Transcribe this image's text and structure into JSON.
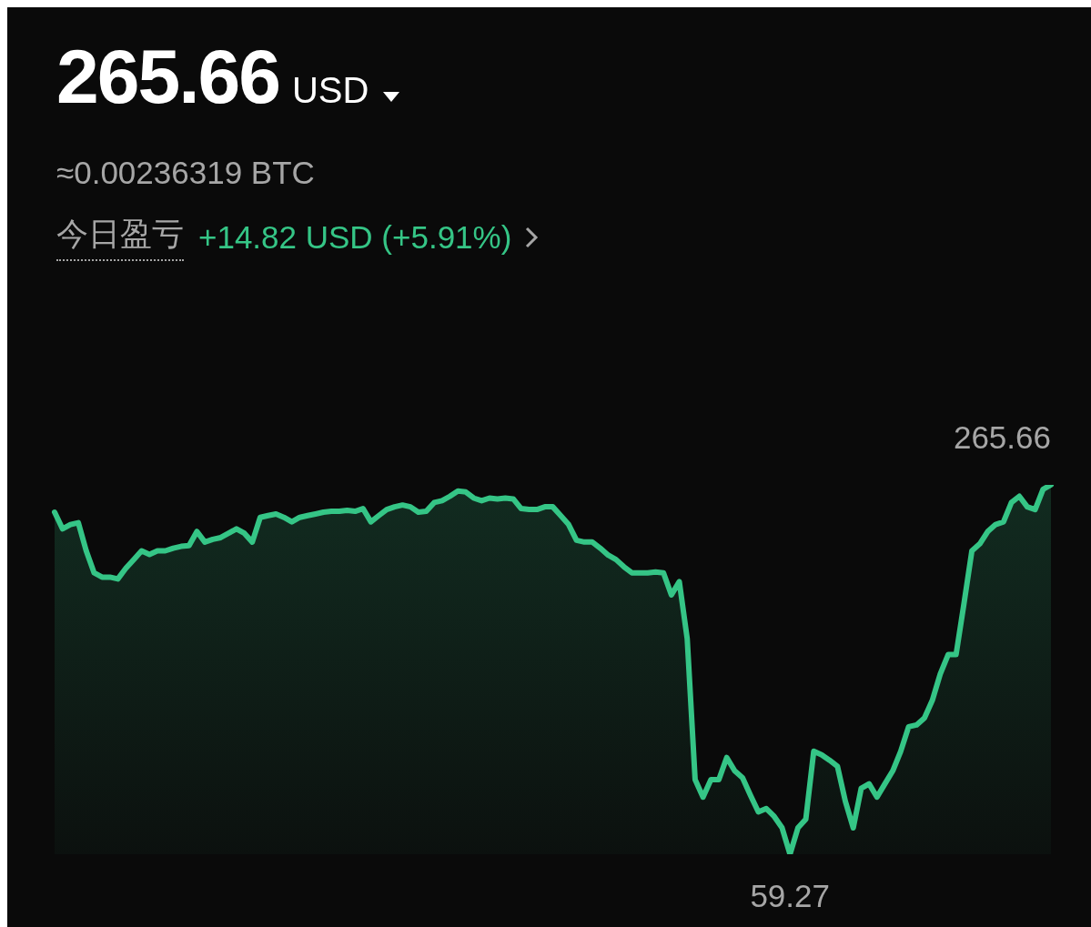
{
  "chart_data": {
    "type": "area",
    "title": "265.66",
    "subtitle": "≈0.00236319 BTC",
    "annotations": [
      "USD",
      "今日盈亏",
      "+14.82 USD (+5.91%)"
    ],
    "categories": [
      null,
      null,
      null,
      null,
      null,
      null,
      null,
      null,
      null,
      null,
      null,
      null,
      null,
      null,
      null,
      null,
      null,
      null,
      null,
      null,
      null,
      null,
      null,
      null,
      null,
      null,
      null,
      null,
      null,
      null,
      null,
      null,
      null,
      null,
      null,
      null,
      null,
      null,
      null,
      null,
      null,
      null,
      null,
      null,
      null,
      null,
      null,
      null,
      null,
      null,
      null,
      null,
      null,
      null,
      null,
      null,
      null,
      null,
      null,
      null,
      null,
      null,
      null,
      null,
      null,
      null,
      null,
      null,
      null,
      null,
      null,
      null,
      null,
      null,
      null,
      null,
      null,
      null,
      null,
      null,
      null,
      null,
      null,
      null,
      null,
      null,
      null,
      null,
      null,
      null,
      null,
      null,
      null,
      null,
      null,
      null,
      null,
      null,
      null,
      null,
      null,
      null,
      null,
      null,
      null,
      null,
      null,
      null,
      null,
      null,
      null,
      null,
      null,
      null,
      null,
      null,
      null,
      null,
      null,
      null,
      null,
      null,
      null,
      null,
      null,
      null,
      null
    ],
    "series": [
      {
        "color": "#35c586",
        "values": [
          250.4,
          241.1,
          243.5,
          244.5,
          228.8,
          216.5,
          214.1,
          214.1,
          213.1,
          219.0,
          223.9,
          228.8,
          226.8,
          228.8,
          228.8,
          230.3,
          231.3,
          231.7,
          239.6,
          233.7,
          235.2,
          236.2,
          238.6,
          241.1,
          238.6,
          233.7,
          247.5,
          248.5,
          249.4,
          247.5,
          245.0,
          247.5,
          248.5,
          249.4,
          250.4,
          250.9,
          250.9,
          251.4,
          250.9,
          252.4,
          245.0,
          248.5,
          251.9,
          253.4,
          254.4,
          253.4,
          250.4,
          250.9,
          255.8,
          256.8,
          259.3,
          262.2,
          261.7,
          258.3,
          256.8,
          258.3,
          257.8,
          258.3,
          257.8,
          252.4,
          251.9,
          251.9,
          253.4,
          253.4,
          248.5,
          243.5,
          234.7,
          233.7,
          233.7,
          230.3,
          226.4,
          223.9,
          219.9,
          216.5,
          216.5,
          216.5,
          217.0,
          216.5,
          204.2,
          211.6,
          179.7,
          101.0,
          91.2,
          101.0,
          101.0,
          113.3,
          105.9,
          102.0,
          92.2,
          82.9,
          84.8,
          80.4,
          74.0,
          59.27,
          74.0,
          78.9,
          116.8,
          114.8,
          111.8,
          108.4,
          88.8,
          74.0,
          96.1,
          98.6,
          91.2,
          98.6,
          105.9,
          116.8,
          130.5,
          131.5,
          135.4,
          145.3,
          160.0,
          170.8,
          170.8,
          199.3,
          228.8,
          232.7,
          239.6,
          243.5,
          245.0,
          255.8,
          259.3,
          253.4,
          251.9,
          263.2,
          265.66
        ],
        "value_labels": [
          null,
          null,
          null,
          null,
          null,
          null,
          null,
          null,
          null,
          null,
          null,
          null,
          null,
          null,
          null,
          null,
          null,
          null,
          null,
          null,
          null,
          null,
          null,
          null,
          null,
          null,
          null,
          null,
          null,
          null,
          null,
          null,
          null,
          null,
          null,
          null,
          null,
          null,
          null,
          null,
          null,
          null,
          null,
          null,
          null,
          null,
          null,
          null,
          null,
          null,
          null,
          null,
          null,
          null,
          null,
          null,
          null,
          null,
          null,
          null,
          null,
          null,
          null,
          null,
          null,
          null,
          null,
          null,
          null,
          null,
          null,
          null,
          null,
          null,
          null,
          null,
          null,
          null,
          null,
          null,
          null,
          null,
          null,
          null,
          null,
          null,
          null,
          null,
          null,
          null,
          null,
          null,
          null,
          "59.27",
          null,
          null,
          null,
          null,
          null,
          null,
          null,
          null,
          null,
          null,
          null,
          null,
          null,
          null,
          null,
          null,
          null,
          null,
          null,
          null,
          null,
          null,
          null,
          null,
          null,
          null,
          null,
          null,
          null,
          null,
          null,
          null,
          "265.66"
        ]
      }
    ],
    "tick_labels": false
  }
}
